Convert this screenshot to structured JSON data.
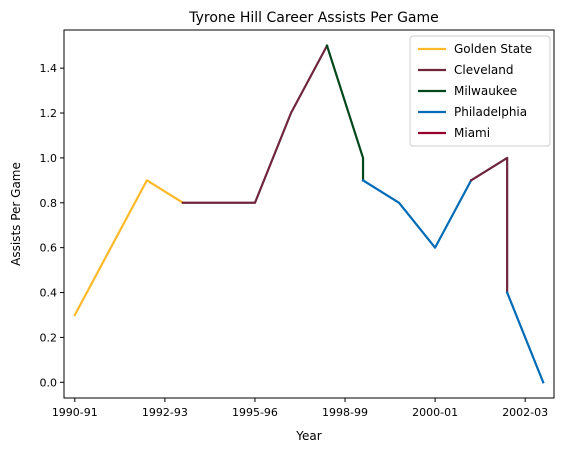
{
  "chart_data": {
    "type": "line",
    "title": "Tyrone Hill Career Assists Per Game",
    "xlabel": "Year",
    "ylabel": "Assists Per Game",
    "x_ticks": [
      "1990-91",
      "1992-93",
      "1995-96",
      "1998-99",
      "2000-01",
      "2002-03"
    ],
    "y_ticks": [
      "0.0",
      "0.2",
      "0.4",
      "0.6",
      "0.8",
      "1.0",
      "1.2",
      "1.4"
    ],
    "ylim": [
      -0.07,
      1.57
    ],
    "xlim": [
      -0.3,
      13.3
    ],
    "grid": false,
    "legend_position": "top-right",
    "series": [
      {
        "name": "Golden State",
        "color": "#FDB927",
        "points": [
          [
            0,
            0.3
          ],
          [
            2,
            0.9
          ],
          [
            3,
            0.8
          ]
        ]
      },
      {
        "name": "Cleveland",
        "color": "#6F263D",
        "points": [
          [
            3,
            0.8
          ],
          [
            5,
            0.8
          ],
          [
            6,
            1.2
          ],
          [
            7,
            1.5
          ]
        ]
      },
      {
        "name": "Milwaukee",
        "color": "#00471B",
        "points": [
          [
            7,
            1.5
          ],
          [
            8,
            1.0
          ],
          [
            8,
            0.9
          ]
        ]
      },
      {
        "name": "Philadelphia",
        "color": "#006BB6",
        "points": [
          [
            8,
            0.9
          ],
          [
            9,
            0.8
          ],
          [
            10,
            0.6
          ],
          [
            11,
            0.9
          ]
        ]
      },
      {
        "name": "Cleveland",
        "color": "#6F263D",
        "points": [
          [
            11,
            0.9
          ],
          [
            12,
            1.0
          ],
          [
            12,
            0.4
          ]
        ]
      },
      {
        "name": "Philadelphia",
        "color": "#006BB6",
        "points": [
          [
            12,
            0.4
          ],
          [
            13,
            0.0
          ]
        ]
      }
    ],
    "legend": [
      {
        "name": "Golden State",
        "color": "#FDB927"
      },
      {
        "name": "Cleveland",
        "color": "#6F263D"
      },
      {
        "name": "Milwaukee",
        "color": "#00471B"
      },
      {
        "name": "Philadelphia",
        "color": "#006BB6"
      },
      {
        "name": "Miami",
        "color": "#98002E"
      }
    ]
  }
}
